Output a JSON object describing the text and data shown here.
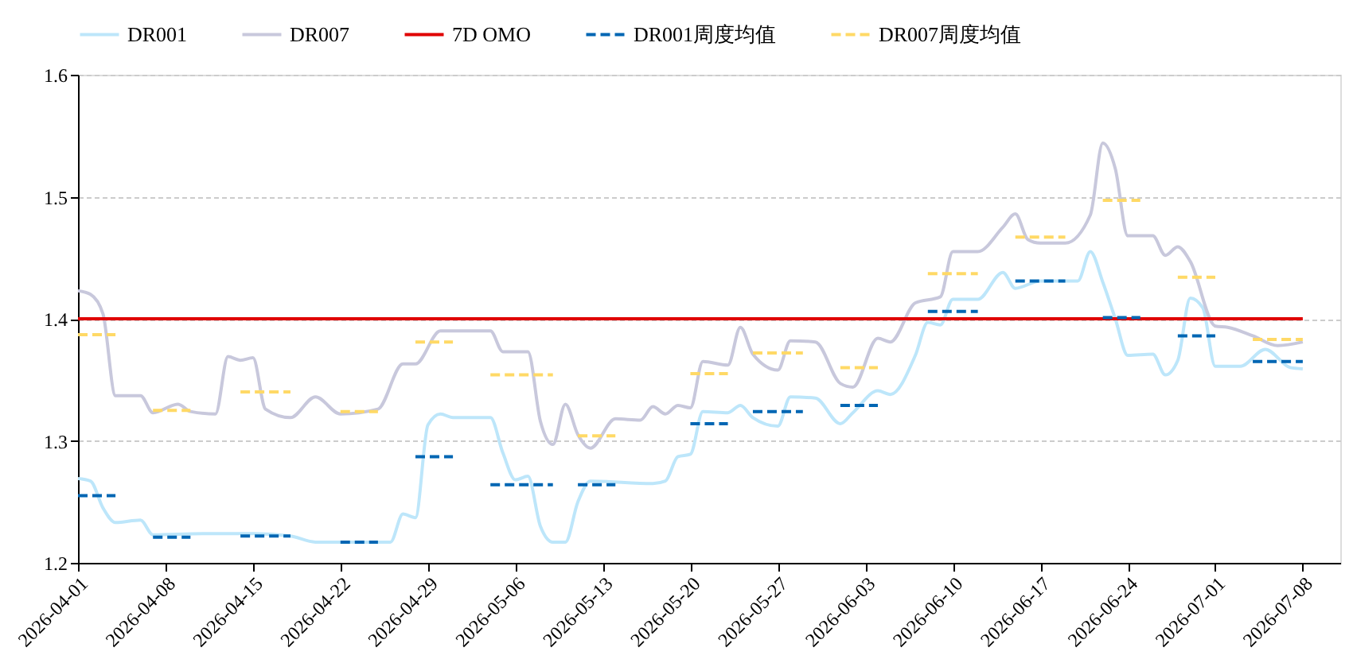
{
  "chart_data": {
    "type": "line",
    "xlim": [
      "2026-04-01",
      "2026-07-11"
    ],
    "xticks": [
      "2026-04-01",
      "2026-04-08",
      "2026-04-15",
      "2026-04-22",
      "2026-04-29",
      "2026-05-06",
      "2026-05-13",
      "2026-05-20",
      "2026-05-27",
      "2026-06-03",
      "2026-06-10",
      "2026-06-17",
      "2026-06-24",
      "2026-07-01",
      "2026-07-08"
    ],
    "ylim": [
      1.2,
      1.6
    ],
    "yticks": [
      1.2,
      1.3,
      1.4,
      1.5,
      1.6
    ],
    "grid": "y",
    "legend": "top",
    "series": [
      {
        "name": "DR001",
        "type": "line",
        "line_style": "solid",
        "color": "#bde6fa",
        "x": [
          "2026-04-01",
          "2026-04-02",
          "2026-04-03",
          "2026-04-04",
          "2026-04-06",
          "2026-04-07",
          "2026-04-11",
          "2026-04-15",
          "2026-04-18",
          "2026-04-20",
          "2026-04-26",
          "2026-04-27",
          "2026-04-28",
          "2026-04-29",
          "2026-04-30",
          "2026-05-01",
          "2026-05-04",
          "2026-05-05",
          "2026-05-06",
          "2026-05-07",
          "2026-05-08",
          "2026-05-09",
          "2026-05-10",
          "2026-05-11",
          "2026-05-12",
          "2026-05-17",
          "2026-05-18",
          "2026-05-19",
          "2026-05-20",
          "2026-05-21",
          "2026-05-23",
          "2026-05-24",
          "2026-05-25",
          "2026-05-27",
          "2026-05-28",
          "2026-05-30",
          "2026-06-01",
          "2026-06-02",
          "2026-06-04",
          "2026-06-05",
          "2026-06-07",
          "2026-06-08",
          "2026-06-09",
          "2026-06-10",
          "2026-06-12",
          "2026-06-14",
          "2026-06-15",
          "2026-06-17",
          "2026-06-20",
          "2026-06-21",
          "2026-06-22",
          "2026-06-23",
          "2026-06-24",
          "2026-06-26",
          "2026-06-27",
          "2026-06-28",
          "2026-06-29",
          "2026-06-30",
          "2026-07-01",
          "2026-07-03",
          "2026-07-05",
          "2026-07-07",
          "2026-07-08"
        ],
        "values": [
          1.269,
          1.267,
          1.245,
          1.233,
          1.235,
          1.223,
          1.224,
          1.224,
          1.222,
          1.217,
          1.217,
          1.24,
          1.237,
          1.313,
          1.322,
          1.319,
          1.319,
          1.29,
          1.268,
          1.271,
          1.23,
          1.217,
          1.217,
          1.25,
          1.267,
          1.265,
          1.267,
          1.287,
          1.289,
          1.324,
          1.323,
          1.329,
          1.319,
          1.312,
          1.336,
          1.335,
          1.314,
          1.323,
          1.341,
          1.338,
          1.37,
          1.397,
          1.395,
          1.416,
          1.416,
          1.438,
          1.425,
          1.431,
          1.431,
          1.455,
          1.43,
          1.4,
          1.37,
          1.371,
          1.354,
          1.366,
          1.417,
          1.409,
          1.361,
          1.361,
          1.375,
          1.36,
          1.359
        ]
      },
      {
        "name": "DR007",
        "type": "line",
        "line_style": "solid",
        "color": "#c8c8dc",
        "x": [
          "2026-04-01",
          "2026-04-02",
          "2026-04-03",
          "2026-04-04",
          "2026-04-06",
          "2026-04-07",
          "2026-04-09",
          "2026-04-10",
          "2026-04-12",
          "2026-04-13",
          "2026-04-14",
          "2026-04-15",
          "2026-04-16",
          "2026-04-18",
          "2026-04-20",
          "2026-04-22",
          "2026-04-25",
          "2026-04-27",
          "2026-04-28",
          "2026-04-30",
          "2026-05-04",
          "2026-05-05",
          "2026-05-07",
          "2026-05-08",
          "2026-05-09",
          "2026-05-10",
          "2026-05-11",
          "2026-05-12",
          "2026-05-14",
          "2026-05-16",
          "2026-05-17",
          "2026-05-18",
          "2026-05-19",
          "2026-05-20",
          "2026-05-21",
          "2026-05-23",
          "2026-05-24",
          "2026-05-25",
          "2026-05-27",
          "2026-05-28",
          "2026-05-30",
          "2026-06-01",
          "2026-06-02",
          "2026-06-04",
          "2026-06-05",
          "2026-06-07",
          "2026-06-09",
          "2026-06-10",
          "2026-06-12",
          "2026-06-14",
          "2026-06-15",
          "2026-06-16",
          "2026-06-17",
          "2026-06-19",
          "2026-06-21",
          "2026-06-22",
          "2026-06-23",
          "2026-06-24",
          "2026-06-26",
          "2026-06-27",
          "2026-06-28",
          "2026-06-29",
          "2026-07-01",
          "2026-07-02",
          "2026-07-04",
          "2026-07-06",
          "2026-07-08"
        ],
        "values": [
          1.423,
          1.42,
          1.404,
          1.337,
          1.337,
          1.323,
          1.33,
          1.324,
          1.322,
          1.369,
          1.366,
          1.368,
          1.326,
          1.319,
          1.336,
          1.322,
          1.326,
          1.363,
          1.363,
          1.39,
          1.39,
          1.373,
          1.373,
          1.316,
          1.297,
          1.33,
          1.305,
          1.294,
          1.318,
          1.317,
          1.328,
          1.322,
          1.329,
          1.327,
          1.365,
          1.362,
          1.393,
          1.371,
          1.358,
          1.382,
          1.381,
          1.347,
          1.344,
          1.384,
          1.381,
          1.413,
          1.418,
          1.455,
          1.455,
          1.475,
          1.486,
          1.465,
          1.462,
          1.462,
          1.485,
          1.544,
          1.523,
          1.468,
          1.468,
          1.452,
          1.459,
          1.447,
          1.394,
          1.393,
          1.386,
          1.378,
          1.381
        ]
      },
      {
        "name": "7D OMO",
        "type": "line",
        "line_style": "solid",
        "color": "#e00000",
        "x": [
          "2026-04-01",
          "2026-07-08"
        ],
        "values": [
          1.4,
          1.4
        ]
      },
      {
        "name": "DR001周度均值",
        "type": "line",
        "line_style": "dashed",
        "color": "#0066b3",
        "x": [
          "2026-04-01",
          "2026-04-04",
          null,
          "2026-04-07",
          "2026-04-10",
          null,
          "2026-04-14",
          "2026-04-18",
          null,
          "2026-04-22",
          "2026-04-25",
          null,
          "2026-04-28",
          "2026-05-01",
          null,
          "2026-05-04",
          "2026-05-09",
          null,
          "2026-05-11",
          "2026-05-14",
          null,
          "2026-05-20",
          "2026-05-23",
          null,
          "2026-05-25",
          "2026-05-29",
          null,
          "2026-06-01",
          "2026-06-04",
          null,
          "2026-06-08",
          "2026-06-12",
          null,
          "2026-06-15",
          "2026-06-19",
          null,
          "2026-06-22",
          "2026-06-25",
          null,
          "2026-06-28",
          "2026-07-01",
          null,
          "2026-07-04",
          "2026-07-08"
        ],
        "values": [
          1.255,
          1.255,
          null,
          1.221,
          1.221,
          null,
          1.222,
          1.222,
          null,
          1.217,
          1.217,
          null,
          1.287,
          1.287,
          null,
          1.264,
          1.264,
          null,
          1.264,
          1.264,
          null,
          1.314,
          1.314,
          null,
          1.324,
          1.324,
          null,
          1.329,
          1.329,
          null,
          1.406,
          1.406,
          null,
          1.431,
          1.431,
          null,
          1.401,
          1.401,
          null,
          1.386,
          1.386,
          null,
          1.365,
          1.365
        ]
      },
      {
        "name": "DR007周度均值",
        "type": "line",
        "line_style": "dashed",
        "color": "#ffd966",
        "x": [
          "2026-04-01",
          "2026-04-04",
          null,
          "2026-04-07",
          "2026-04-10",
          null,
          "2026-04-14",
          "2026-04-18",
          null,
          "2026-04-22",
          "2026-04-25",
          null,
          "2026-04-28",
          "2026-05-01",
          null,
          "2026-05-04",
          "2026-05-09",
          null,
          "2026-05-11",
          "2026-05-14",
          null,
          "2026-05-20",
          "2026-05-23",
          null,
          "2026-05-25",
          "2026-05-29",
          null,
          "2026-06-01",
          "2026-06-04",
          null,
          "2026-06-08",
          "2026-06-12",
          null,
          "2026-06-15",
          "2026-06-19",
          null,
          "2026-06-22",
          "2026-06-25",
          null,
          "2026-06-28",
          "2026-07-01",
          null,
          "2026-07-04",
          "2026-07-08"
        ],
        "values": [
          1.387,
          1.387,
          null,
          1.325,
          1.325,
          null,
          1.34,
          1.34,
          null,
          1.324,
          1.324,
          null,
          1.381,
          1.381,
          null,
          1.354,
          1.354,
          null,
          1.304,
          1.304,
          null,
          1.355,
          1.355,
          null,
          1.372,
          1.372,
          null,
          1.36,
          1.36,
          null,
          1.437,
          1.437,
          null,
          1.467,
          1.467,
          null,
          1.497,
          1.497,
          null,
          1.434,
          1.434,
          null,
          1.383,
          1.383
        ]
      }
    ]
  }
}
